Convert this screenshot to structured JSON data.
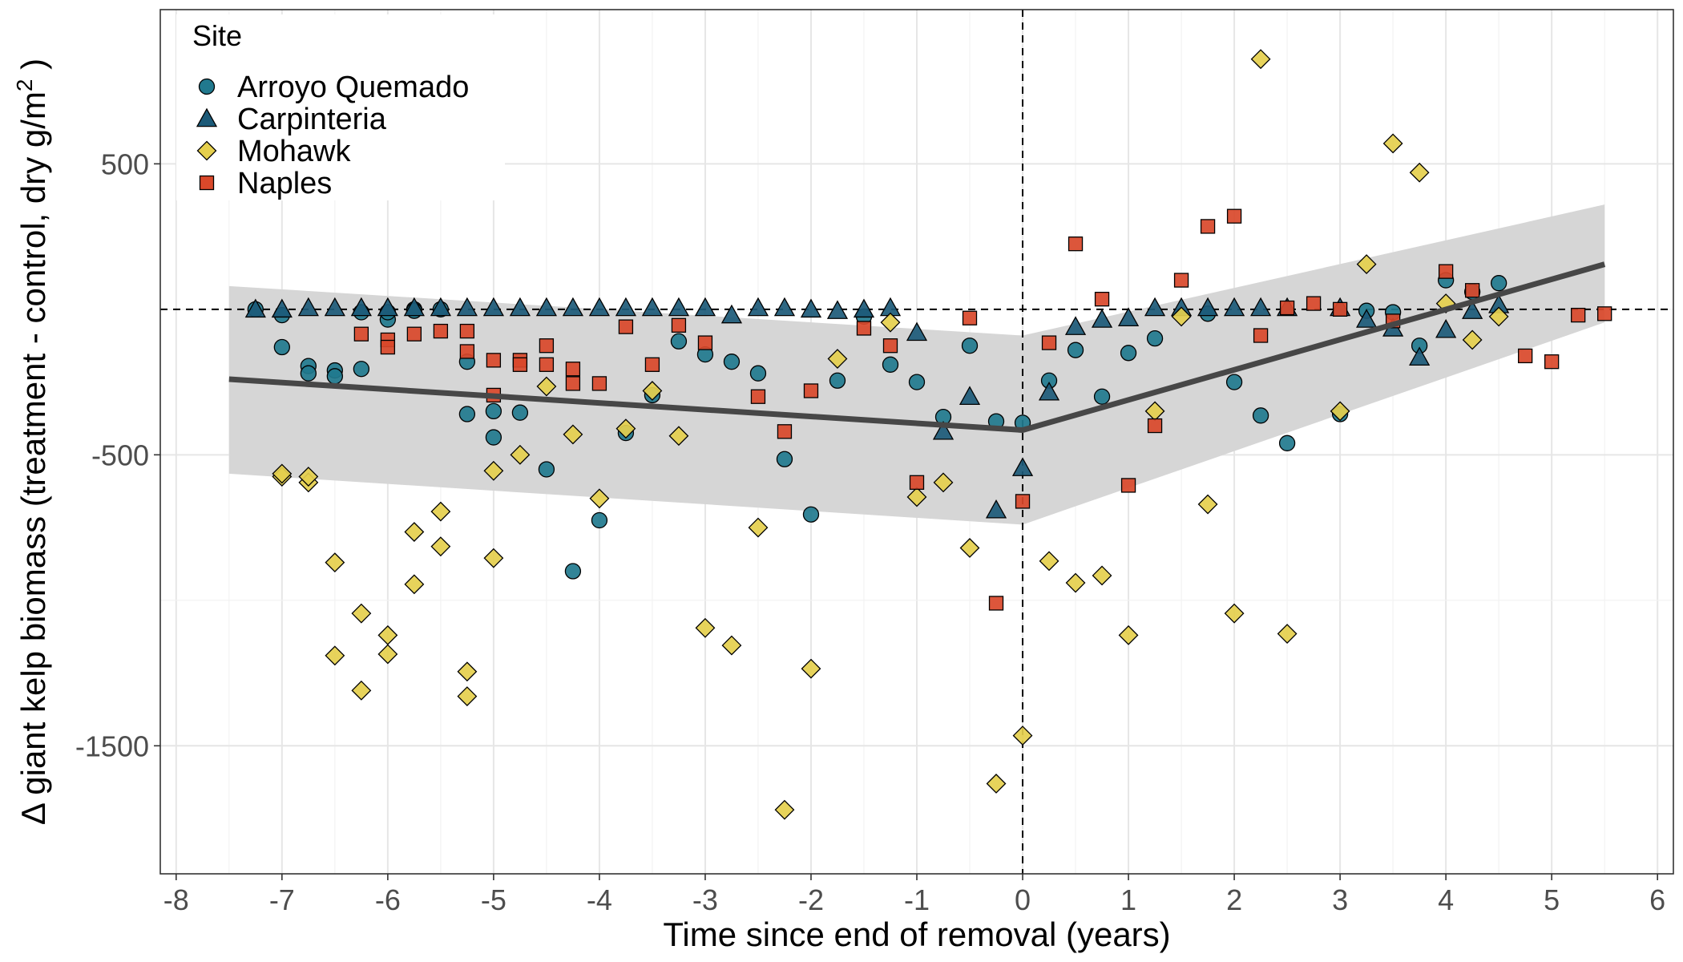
{
  "chart_data": {
    "type": "scatter",
    "xlabel": "Time since end of removal (years)",
    "ylabel": "Δ giant kelp biomass (treatment - control,  dry g/m",
    "ylabel_superscript": "2",
    "ylabel_close": " )",
    "xlim": [
      -8.15,
      6.15
    ],
    "ylim": [
      -1940,
      1030
    ],
    "x_ticks": [
      -8,
      -7,
      -6,
      -5,
      -4,
      -3,
      -2,
      -1,
      0,
      1,
      2,
      3,
      4,
      5,
      6
    ],
    "x_tick_labels": [
      "-8",
      "-7",
      "-6",
      "-5",
      "-4",
      "-3",
      "-2",
      "-1",
      "0",
      "1",
      "2",
      "3",
      "4",
      "5",
      "6"
    ],
    "y_ticks": [
      -1500,
      -500,
      500
    ],
    "y_tick_labels": [
      "-1500",
      "-500",
      "500"
    ],
    "y_minor_ticks": [
      -1000,
      0
    ],
    "grid": true,
    "reference_lines": {
      "x": 0,
      "y": 0,
      "style": "dashed"
    },
    "legend": {
      "title": "Site",
      "position": "top-left"
    },
    "series": [
      {
        "name": "Arroyo Quemado",
        "marker": "circle",
        "color": "#21798e",
        "points": [
          [
            -7.25,
            0
          ],
          [
            -7,
            -20
          ],
          [
            -7,
            -130
          ],
          [
            -6.75,
            -195
          ],
          [
            -6.75,
            -220
          ],
          [
            -6.5,
            -210
          ],
          [
            -6.5,
            -230
          ],
          [
            -6.25,
            -205
          ],
          [
            -6.25,
            -10
          ],
          [
            -6,
            -35
          ],
          [
            -6,
            -10
          ],
          [
            -5.75,
            0
          ],
          [
            -5.75,
            -5
          ],
          [
            -5.5,
            0
          ],
          [
            -5.25,
            -180
          ],
          [
            -5.25,
            -360
          ],
          [
            -5,
            -350
          ],
          [
            -5,
            -440
          ],
          [
            -4.75,
            -355
          ],
          [
            -4.5,
            -550
          ],
          [
            -4.25,
            -900
          ],
          [
            -4,
            -725
          ],
          [
            -3.75,
            -425
          ],
          [
            -3.5,
            -295
          ],
          [
            -3,
            -155
          ],
          [
            -3.25,
            -110
          ],
          [
            -2.75,
            -180
          ],
          [
            -2.5,
            -220
          ],
          [
            -2.25,
            -515
          ],
          [
            -2,
            -705
          ],
          [
            -1.75,
            -245
          ],
          [
            -1.5,
            -25
          ],
          [
            -1.25,
            -190
          ],
          [
            -1,
            -250
          ],
          [
            -0.75,
            -370
          ],
          [
            -0.5,
            -125
          ],
          [
            -0.25,
            -385
          ],
          [
            0,
            -390
          ],
          [
            0.25,
            -245
          ],
          [
            0.5,
            -140
          ],
          [
            0.75,
            -300
          ],
          [
            1,
            -150
          ],
          [
            1.25,
            -100
          ],
          [
            1.75,
            -15
          ],
          [
            2,
            -250
          ],
          [
            2.25,
            -365
          ],
          [
            2.5,
            -460
          ],
          [
            3,
            -360
          ],
          [
            3.25,
            -5
          ],
          [
            3.5,
            -10
          ],
          [
            3.75,
            -125
          ],
          [
            4,
            100
          ],
          [
            4.25,
            60
          ],
          [
            4.5,
            90
          ]
        ]
      },
      {
        "name": "Carpinteria",
        "marker": "triangle",
        "color": "#1c5a78",
        "points": [
          [
            -7.25,
            0
          ],
          [
            -7,
            0
          ],
          [
            -6.75,
            5
          ],
          [
            -6.5,
            5
          ],
          [
            -6.25,
            5
          ],
          [
            -6,
            5
          ],
          [
            -5.75,
            5
          ],
          [
            -5.5,
            5
          ],
          [
            -5.25,
            5
          ],
          [
            -5,
            5
          ],
          [
            -4.75,
            5
          ],
          [
            -4.5,
            5
          ],
          [
            -4.25,
            5
          ],
          [
            -4,
            5
          ],
          [
            -3.75,
            5
          ],
          [
            -3.5,
            5
          ],
          [
            -3.25,
            5
          ],
          [
            -3,
            5
          ],
          [
            -2.75,
            -20
          ],
          [
            -2.5,
            5
          ],
          [
            -2.25,
            5
          ],
          [
            -2,
            0
          ],
          [
            -1.75,
            -5
          ],
          [
            -1.5,
            0
          ],
          [
            -1.25,
            5
          ],
          [
            -1,
            -80
          ],
          [
            -0.75,
            -420
          ],
          [
            -0.5,
            -300
          ],
          [
            -0.25,
            -690
          ],
          [
            0,
            -545
          ],
          [
            0.25,
            -285
          ],
          [
            0.5,
            -60
          ],
          [
            0.75,
            -35
          ],
          [
            1,
            -30
          ],
          [
            1.25,
            5
          ],
          [
            1.5,
            5
          ],
          [
            1.75,
            5
          ],
          [
            2,
            5
          ],
          [
            2.25,
            5
          ],
          [
            2.5,
            5
          ],
          [
            3,
            5
          ],
          [
            3.25,
            -35
          ],
          [
            3.5,
            -65
          ],
          [
            3.75,
            -165
          ],
          [
            4,
            -70
          ],
          [
            4.25,
            -5
          ],
          [
            4.5,
            15
          ]
        ]
      },
      {
        "name": "Mohawk",
        "marker": "diamond",
        "color": "#e5cf4d",
        "points": [
          [
            -7,
            -575
          ],
          [
            -7,
            -565
          ],
          [
            -6.75,
            -595
          ],
          [
            -6.75,
            -575
          ],
          [
            -6.5,
            -870
          ],
          [
            -6.5,
            -1190
          ],
          [
            -6.25,
            -1045
          ],
          [
            -6.25,
            -1310
          ],
          [
            -6,
            -1120
          ],
          [
            -6,
            -1185
          ],
          [
            -5.75,
            -765
          ],
          [
            -5.75,
            -945
          ],
          [
            -5.5,
            -695
          ],
          [
            -5.5,
            -815
          ],
          [
            -5.25,
            -1245
          ],
          [
            -5.25,
            -1330
          ],
          [
            -5,
            -555
          ],
          [
            -5,
            -855
          ],
          [
            -4.75,
            -500
          ],
          [
            -4.5,
            -265
          ],
          [
            -4.25,
            -430
          ],
          [
            -4,
            -650
          ],
          [
            -3.75,
            -410
          ],
          [
            -3.5,
            -280
          ],
          [
            -3.25,
            -435
          ],
          [
            -3,
            -1095
          ],
          [
            -2.75,
            -1155
          ],
          [
            -2.5,
            -750
          ],
          [
            -2.25,
            -1720
          ],
          [
            -2,
            -1235
          ],
          [
            -1.75,
            -170
          ],
          [
            -1.25,
            -45
          ],
          [
            -1,
            -645
          ],
          [
            -0.75,
            -595
          ],
          [
            -0.5,
            -820
          ],
          [
            -0.25,
            -1630
          ],
          [
            0,
            -1465
          ],
          [
            0.25,
            -865
          ],
          [
            0.5,
            -940
          ],
          [
            0.75,
            -915
          ],
          [
            1,
            -1120
          ],
          [
            1.25,
            -350
          ],
          [
            1.5,
            -25
          ],
          [
            1.75,
            -670
          ],
          [
            2,
            -1045
          ],
          [
            2.25,
            860
          ],
          [
            2.5,
            -1115
          ],
          [
            3,
            -350
          ],
          [
            3.25,
            155
          ],
          [
            3.5,
            570
          ],
          [
            3.75,
            470
          ],
          [
            4,
            20
          ],
          [
            4.25,
            -105
          ],
          [
            4.5,
            -25
          ]
        ]
      },
      {
        "name": "Naples",
        "marker": "square",
        "color": "#d9482a",
        "points": [
          [
            -6.25,
            -85
          ],
          [
            -6,
            -105
          ],
          [
            -6,
            -130
          ],
          [
            -5.75,
            -85
          ],
          [
            -5.5,
            -75
          ],
          [
            -5.25,
            -75
          ],
          [
            -5.25,
            -145
          ],
          [
            -5,
            -175
          ],
          [
            -5,
            -295
          ],
          [
            -4.75,
            -175
          ],
          [
            -4.75,
            -190
          ],
          [
            -4.5,
            -125
          ],
          [
            -4.5,
            -190
          ],
          [
            -4.25,
            -205
          ],
          [
            -4.25,
            -255
          ],
          [
            -4,
            -255
          ],
          [
            -3.75,
            -60
          ],
          [
            -3.5,
            -190
          ],
          [
            -3.25,
            -55
          ],
          [
            -3,
            -115
          ],
          [
            -2.5,
            -300
          ],
          [
            -2.25,
            -420
          ],
          [
            -2,
            -280
          ],
          [
            -1.5,
            -65
          ],
          [
            -1.25,
            -125
          ],
          [
            -1,
            -595
          ],
          [
            -0.5,
            -30
          ],
          [
            -0.25,
            -1010
          ],
          [
            0,
            -660
          ],
          [
            0.25,
            -115
          ],
          [
            0.5,
            225
          ],
          [
            0.75,
            35
          ],
          [
            1,
            -605
          ],
          [
            1.25,
            -400
          ],
          [
            1.5,
            100
          ],
          [
            1.75,
            285
          ],
          [
            2,
            320
          ],
          [
            2.25,
            -90
          ],
          [
            2.5,
            5
          ],
          [
            2.75,
            20
          ],
          [
            3,
            0
          ],
          [
            3.5,
            -40
          ],
          [
            4,
            130
          ],
          [
            4.25,
            65
          ],
          [
            4.75,
            -160
          ],
          [
            5,
            -180
          ],
          [
            5.25,
            -20
          ],
          [
            5.5,
            -15
          ]
        ]
      }
    ],
    "fit": {
      "name": "",
      "color": "#474747",
      "band_color": "#d6d6d6",
      "line": [
        [
          -7.5,
          -240
        ],
        [
          0,
          -415
        ],
        [
          5.5,
          155
        ]
      ],
      "band_upper": [
        [
          -7.5,
          80
        ],
        [
          0,
          -90
        ],
        [
          5.5,
          360
        ]
      ],
      "band_lower": [
        [
          -7.5,
          -565
        ],
        [
          0,
          -740
        ],
        [
          5.5,
          -45
        ]
      ]
    }
  }
}
